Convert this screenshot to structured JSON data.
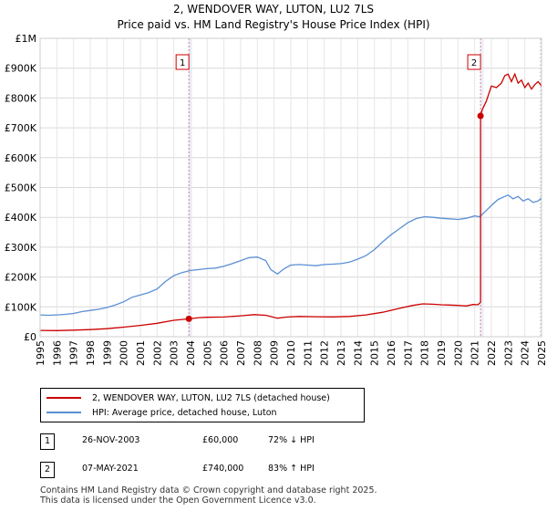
{
  "title_line1": "2, WENDOVER WAY, LUTON, LU2 7LS",
  "title_line2": "Price paid vs. HM Land Registry's House Price Index (HPI)",
  "chart_data": {
    "type": "line",
    "xlim": [
      1995,
      2025
    ],
    "ylim": [
      0,
      1000000
    ],
    "y_ticks": [
      0,
      100000,
      200000,
      300000,
      400000,
      500000,
      600000,
      700000,
      800000,
      900000,
      1000000
    ],
    "y_tick_labels": [
      "£0",
      "£100K",
      "£200K",
      "£300K",
      "£400K",
      "£500K",
      "£600K",
      "£700K",
      "£800K",
      "£900K",
      "£1M"
    ],
    "x_ticks": [
      1995,
      1996,
      1997,
      1998,
      1999,
      2000,
      2001,
      2002,
      2003,
      2004,
      2005,
      2006,
      2007,
      2008,
      2009,
      2010,
      2011,
      2012,
      2013,
      2014,
      2015,
      2016,
      2017,
      2018,
      2019,
      2020,
      2021,
      2022,
      2023,
      2024,
      2025
    ],
    "x_tick_labels": [
      "1995",
      "1996",
      "1997",
      "1998",
      "1999",
      "2000",
      "2001",
      "2002",
      "2003",
      "2004",
      "2005",
      "2006",
      "2007",
      "2008",
      "2009",
      "2010",
      "2011",
      "2012",
      "2013",
      "2014",
      "2015",
      "2016",
      "2017",
      "2018",
      "2019",
      "2020",
      "2021",
      "2022",
      "2023",
      "2024",
      "2025"
    ],
    "series": [
      {
        "name": "2, WENDOVER WAY, LUTON, LU2 7LS (detached house)",
        "color": "#cc0000",
        "points": [
          [
            1995.0,
            21000
          ],
          [
            1996.0,
            20500
          ],
          [
            1997.0,
            22000
          ],
          [
            1998.0,
            24000
          ],
          [
            1999.0,
            27000
          ],
          [
            2000.0,
            32000
          ],
          [
            2001.0,
            38000
          ],
          [
            2002.0,
            45000
          ],
          [
            2003.0,
            55000
          ],
          [
            2003.9,
            60000
          ],
          [
            2004.5,
            64000
          ],
          [
            2005.0,
            65000
          ],
          [
            2006.0,
            66000
          ],
          [
            2007.0,
            70000
          ],
          [
            2007.8,
            74000
          ],
          [
            2008.5,
            72000
          ],
          [
            2009.2,
            62000
          ],
          [
            2009.8,
            66000
          ],
          [
            2010.5,
            68000
          ],
          [
            2011.5,
            67000
          ],
          [
            2012.5,
            66500
          ],
          [
            2013.5,
            68000
          ],
          [
            2014.5,
            73000
          ],
          [
            2015.5,
            82000
          ],
          [
            2016.5,
            95000
          ],
          [
            2017.3,
            105000
          ],
          [
            2017.9,
            110000
          ],
          [
            2018.5,
            109000
          ],
          [
            2019.0,
            107000
          ],
          [
            2019.5,
            106000
          ],
          [
            2020.0,
            105000
          ],
          [
            2020.5,
            103000
          ],
          [
            2020.9,
            108000
          ],
          [
            2021.2,
            107000
          ],
          [
            2021.35,
            115000
          ],
          [
            2021.35,
            740000
          ],
          [
            2021.45,
            760000
          ],
          [
            2021.7,
            790000
          ],
          [
            2022.0,
            840000
          ],
          [
            2022.3,
            835000
          ],
          [
            2022.6,
            850000
          ],
          [
            2022.8,
            875000
          ],
          [
            2023.0,
            880000
          ],
          [
            2023.2,
            855000
          ],
          [
            2023.4,
            880000
          ],
          [
            2023.6,
            850000
          ],
          [
            2023.8,
            860000
          ],
          [
            2024.0,
            835000
          ],
          [
            2024.2,
            850000
          ],
          [
            2024.4,
            830000
          ],
          [
            2024.6,
            845000
          ],
          [
            2024.8,
            855000
          ],
          [
            2025.0,
            840000
          ]
        ]
      },
      {
        "name": "HPI: Average price, detached house, Luton",
        "color": "#5b8fd4",
        "points": [
          [
            1995.0,
            73000
          ],
          [
            1995.5,
            72000
          ],
          [
            1996.0,
            73000
          ],
          [
            1996.5,
            75000
          ],
          [
            1997.0,
            78000
          ],
          [
            1997.5,
            84000
          ],
          [
            1998.0,
            88000
          ],
          [
            1998.5,
            92000
          ],
          [
            1999.0,
            98000
          ],
          [
            1999.5,
            106000
          ],
          [
            2000.0,
            117000
          ],
          [
            2000.5,
            132000
          ],
          [
            2001.0,
            140000
          ],
          [
            2001.5,
            148000
          ],
          [
            2002.0,
            160000
          ],
          [
            2002.5,
            185000
          ],
          [
            2003.0,
            205000
          ],
          [
            2003.5,
            215000
          ],
          [
            2004.0,
            222000
          ],
          [
            2004.5,
            225000
          ],
          [
            2005.0,
            228000
          ],
          [
            2005.5,
            230000
          ],
          [
            2006.0,
            236000
          ],
          [
            2006.5,
            245000
          ],
          [
            2007.0,
            255000
          ],
          [
            2007.5,
            265000
          ],
          [
            2008.0,
            267000
          ],
          [
            2008.5,
            255000
          ],
          [
            2008.8,
            225000
          ],
          [
            2009.2,
            210000
          ],
          [
            2009.6,
            228000
          ],
          [
            2010.0,
            240000
          ],
          [
            2010.5,
            242000
          ],
          [
            2011.0,
            240000
          ],
          [
            2011.5,
            238000
          ],
          [
            2012.0,
            242000
          ],
          [
            2012.5,
            243000
          ],
          [
            2013.0,
            245000
          ],
          [
            2013.5,
            250000
          ],
          [
            2014.0,
            260000
          ],
          [
            2014.5,
            272000
          ],
          [
            2015.0,
            292000
          ],
          [
            2015.5,
            318000
          ],
          [
            2016.0,
            342000
          ],
          [
            2016.5,
            362000
          ],
          [
            2017.0,
            382000
          ],
          [
            2017.5,
            396000
          ],
          [
            2018.0,
            402000
          ],
          [
            2018.5,
            400000
          ],
          [
            2019.0,
            397000
          ],
          [
            2019.5,
            395000
          ],
          [
            2020.0,
            393000
          ],
          [
            2020.5,
            397000
          ],
          [
            2021.0,
            405000
          ],
          [
            2021.3,
            402000
          ],
          [
            2021.6,
            418000
          ],
          [
            2022.0,
            440000
          ],
          [
            2022.4,
            460000
          ],
          [
            2022.8,
            470000
          ],
          [
            2023.0,
            475000
          ],
          [
            2023.3,
            462000
          ],
          [
            2023.6,
            470000
          ],
          [
            2023.9,
            455000
          ],
          [
            2024.2,
            462000
          ],
          [
            2024.5,
            450000
          ],
          [
            2024.8,
            455000
          ],
          [
            2025.0,
            465000
          ]
        ]
      }
    ],
    "markers": [
      {
        "label": "1",
        "x": 2003.9,
        "y": 60000
      },
      {
        "label": "2",
        "x": 2021.35,
        "y": 740000
      }
    ],
    "hatch_after": 2024.9
  },
  "legend": {
    "property_label": "2, WENDOVER WAY, LUTON, LU2 7LS (detached house)",
    "hpi_label": "HPI: Average price, detached house, Luton",
    "property_color": "#cc0000",
    "hpi_color": "#5b8fd4"
  },
  "transactions": [
    {
      "num": "1",
      "date": "26-NOV-2003",
      "price": "£60,000",
      "hpi": "72% ↓ HPI"
    },
    {
      "num": "2",
      "date": "07-MAY-2021",
      "price": "£740,000",
      "hpi": "83% ↑ HPI"
    }
  ],
  "footer": {
    "line1": "Contains HM Land Registry data © Crown copyright and database right 2025.",
    "line2": "This data is licensed under the Open Government Licence v3.0."
  }
}
